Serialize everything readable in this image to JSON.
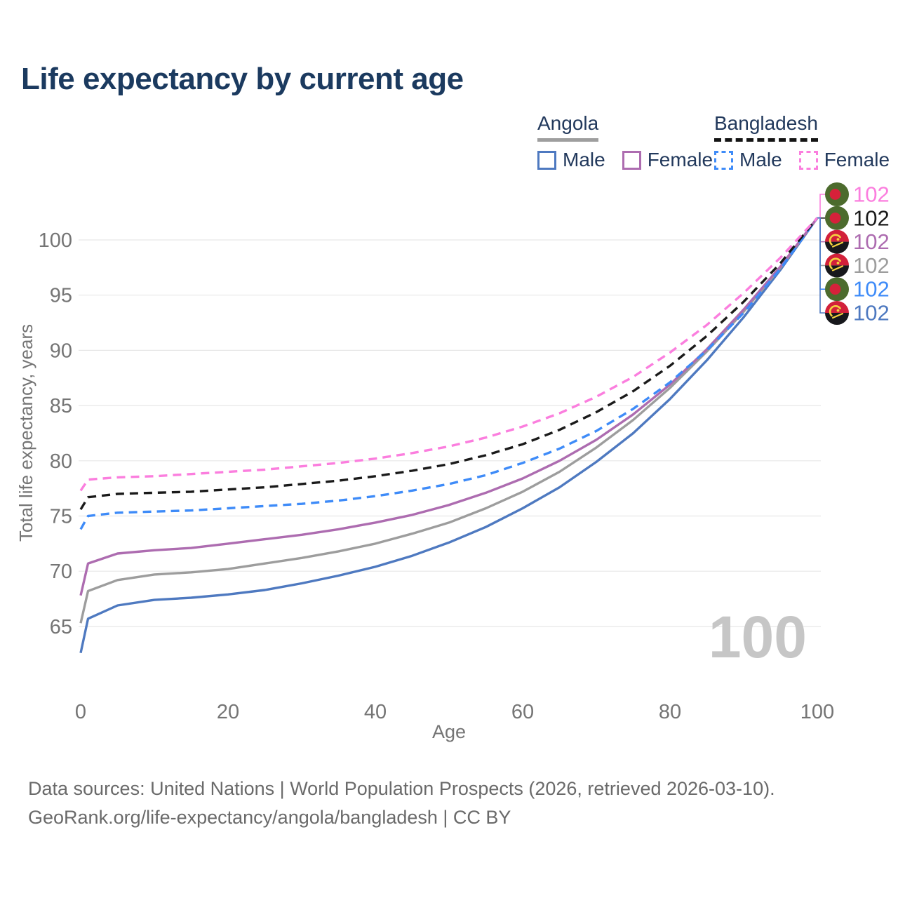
{
  "header": {
    "title": "Life expectancy by current age"
  },
  "legend": {
    "groups": [
      {
        "country": "Angola",
        "line": "solid",
        "underline_color": "#9e9e9e",
        "items": [
          {
            "label": "Male",
            "color": "#4e79c0",
            "line": "solid"
          },
          {
            "label": "Female",
            "color": "#ad6cb0",
            "line": "solid"
          }
        ]
      },
      {
        "country": "Bangladesh",
        "line": "dashed",
        "underline_color": "#141414",
        "items": [
          {
            "label": "Male",
            "color": "#3e8bf8",
            "line": "dashed"
          },
          {
            "label": "Female",
            "color": "#fb7ede",
            "line": "dashed"
          }
        ]
      }
    ]
  },
  "chart_data": {
    "type": "line",
    "title": "Life expectancy by current age",
    "xlabel": "Age",
    "ylabel": "Total life expectancy, years",
    "xlim": [
      0,
      100
    ],
    "ylim": [
      62,
      103
    ],
    "xticks": [
      0,
      20,
      40,
      60,
      80,
      100
    ],
    "yticks": [
      65,
      70,
      75,
      80,
      85,
      90,
      95,
      100
    ],
    "grid": "horizontal",
    "grid_color": "#e7e7e7",
    "axis_text_color": "#757575",
    "watermark": "100",
    "x": [
      0,
      1,
      5,
      10,
      15,
      20,
      25,
      30,
      35,
      40,
      45,
      50,
      55,
      60,
      65,
      70,
      75,
      80,
      85,
      90,
      95,
      100
    ],
    "series": [
      {
        "id": "ao_male",
        "name": "Angola - Male",
        "country": "Angola",
        "sex": "Male",
        "line": "solid",
        "color": "#4e79c0",
        "values": [
          62.6,
          65.7,
          66.9,
          67.4,
          67.6,
          67.9,
          68.3,
          68.9,
          69.6,
          70.4,
          71.4,
          72.6,
          74.0,
          75.7,
          77.6,
          79.9,
          82.5,
          85.6,
          89.1,
          93.0,
          97.3,
          102
        ]
      },
      {
        "id": "ao_both",
        "name": "Angola - Both sexes",
        "country": "Angola",
        "sex": "Both sexes",
        "line": "solid",
        "color": "#9d9d9d",
        "values": [
          65.3,
          68.2,
          69.2,
          69.7,
          69.9,
          70.2,
          70.7,
          71.2,
          71.8,
          72.5,
          73.4,
          74.4,
          75.7,
          77.2,
          79.0,
          81.2,
          83.7,
          86.6,
          89.9,
          93.5,
          97.5,
          102
        ]
      },
      {
        "id": "ao_female",
        "name": "Angola - Female",
        "country": "Angola",
        "sex": "Female",
        "line": "solid",
        "color": "#ad6cb0",
        "values": [
          67.8,
          70.7,
          71.6,
          71.9,
          72.1,
          72.5,
          72.9,
          73.3,
          73.8,
          74.4,
          75.1,
          76.0,
          77.1,
          78.4,
          80.0,
          81.9,
          84.2,
          86.9,
          90.1,
          93.7,
          97.6,
          102
        ]
      },
      {
        "id": "bd_male",
        "name": "Bangladesh - Male",
        "country": "Bangladesh",
        "sex": "Male",
        "line": "dashed",
        "color": "#3e8bf8",
        "values": [
          73.8,
          75.0,
          75.3,
          75.4,
          75.5,
          75.7,
          75.9,
          76.1,
          76.4,
          76.8,
          77.3,
          77.9,
          78.7,
          79.8,
          81.1,
          82.7,
          84.7,
          87.1,
          90.0,
          93.4,
          97.4,
          102
        ]
      },
      {
        "id": "bd_both",
        "name": "Bangladesh - Both sexes",
        "country": "Bangladesh",
        "sex": "Both sexes",
        "line": "dashed",
        "color": "#1a1a1a",
        "values": [
          75.6,
          76.7,
          77.0,
          77.1,
          77.2,
          77.4,
          77.6,
          77.9,
          78.2,
          78.6,
          79.1,
          79.7,
          80.5,
          81.5,
          82.8,
          84.4,
          86.3,
          88.6,
          91.3,
          94.4,
          97.9,
          102
        ]
      },
      {
        "id": "bd_female",
        "name": "Bangladesh - Female",
        "country": "Bangladesh",
        "sex": "Female",
        "line": "dashed",
        "color": "#fb7ede",
        "values": [
          77.3,
          78.3,
          78.5,
          78.6,
          78.8,
          79.0,
          79.2,
          79.5,
          79.8,
          80.2,
          80.7,
          81.3,
          82.1,
          83.1,
          84.3,
          85.8,
          87.6,
          89.8,
          92.3,
          95.2,
          98.4,
          102
        ]
      }
    ],
    "end_labels": [
      {
        "series_id": "bd_female",
        "flag": "bangladesh",
        "value": "102",
        "color": "#fb7ede"
      },
      {
        "series_id": "bd_both",
        "flag": "bangladesh",
        "value": "102",
        "color": "#1a1a1a"
      },
      {
        "series_id": "ao_female",
        "flag": "angola",
        "value": "102",
        "color": "#ad6cb0"
      },
      {
        "series_id": "ao_both",
        "flag": "angola",
        "value": "102",
        "color": "#9d9d9d"
      },
      {
        "series_id": "bd_male",
        "flag": "bangladesh",
        "value": "102",
        "color": "#3e8bf8"
      },
      {
        "series_id": "ao_male",
        "flag": "angola",
        "value": "102",
        "color": "#4e79c0"
      }
    ],
    "flag_colors": {
      "bangladesh": {
        "field": "#4c6b2d",
        "disc": "#d6213a"
      },
      "angola": {
        "top": "#d2203a",
        "bottom": "#17181c",
        "emblem": "#f5d23f"
      }
    }
  },
  "footer": {
    "line1": "Data sources: United Nations | World Population Prospects (2026, retrieved 2026-03-10).",
    "line2": "GeoRank.org/life-expectancy/angola/bangladesh | CC BY"
  }
}
